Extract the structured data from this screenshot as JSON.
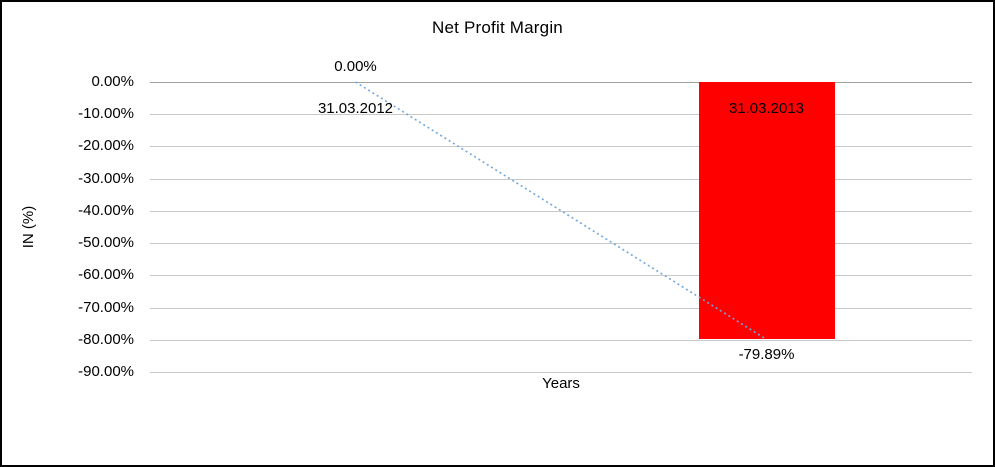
{
  "chart_data": {
    "type": "bar",
    "title": "Net Profit Margin",
    "xlabel": "Years",
    "ylabel": "IN (%)",
    "categories": [
      "31.03.2012",
      "31.03.2013"
    ],
    "values": [
      0.0,
      -79.89
    ],
    "data_labels": [
      "0.00%",
      "-79.89%"
    ],
    "ylim": [
      -90,
      0
    ],
    "ytick_step": 10,
    "ytick_labels": [
      "0.00%",
      "-10.00%",
      "-20.00%",
      "-30.00%",
      "-40.00%",
      "-50.00%",
      "-60.00%",
      "-70.00%",
      "-80.00%",
      "-90.00%"
    ],
    "grid": true,
    "legend": "none",
    "bar_color": "#ff0000",
    "trendline": {
      "style": "dotted",
      "color": "#6fa8dc",
      "from": [
        0,
        0.0
      ],
      "to": [
        1,
        -79.89
      ]
    }
  }
}
